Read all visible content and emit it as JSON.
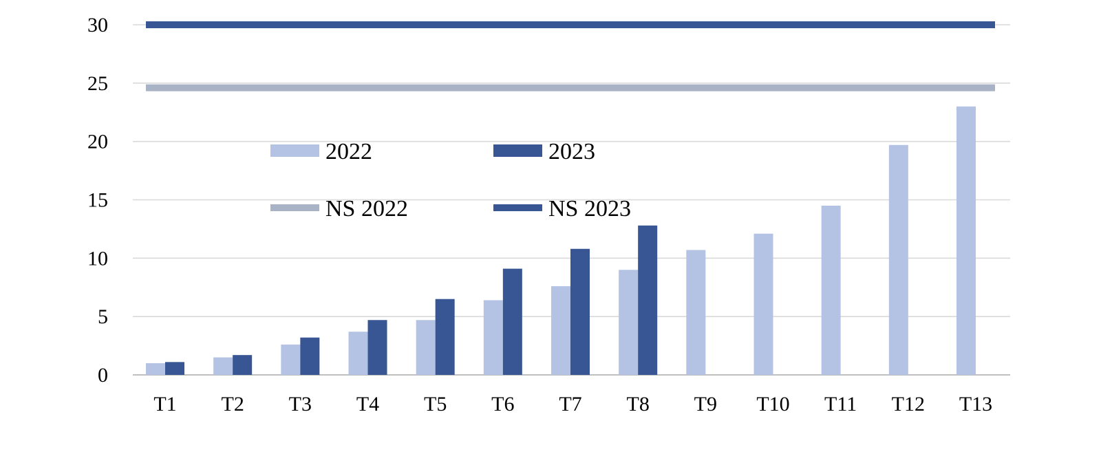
{
  "chart_data": {
    "type": "bar",
    "title": "",
    "xlabel": "",
    "ylabel": "",
    "categories": [
      "T1",
      "T2",
      "T3",
      "T4",
      "T5",
      "T6",
      "T7",
      "T8",
      "T9",
      "T10",
      "T11",
      "T12",
      "T13"
    ],
    "series": [
      {
        "name": "2022",
        "color": "#b4c3e4",
        "values": [
          1.0,
          1.5,
          2.6,
          3.7,
          4.7,
          6.4,
          7.6,
          9.0,
          10.7,
          12.1,
          14.5,
          19.7,
          23.0
        ]
      },
      {
        "name": "2023",
        "color": "#385694",
        "values": [
          1.1,
          1.7,
          3.2,
          4.7,
          6.5,
          9.1,
          10.8,
          12.8,
          null,
          null,
          null,
          null,
          null
        ]
      }
    ],
    "reference_lines": [
      {
        "name": "NS 2022",
        "value": 24.6,
        "color": "#a9b3c6"
      },
      {
        "name": "NS 2023",
        "value": 30.0,
        "color": "#385694"
      }
    ],
    "y_ticks": [
      0,
      5,
      10,
      15,
      20,
      25,
      30
    ],
    "ylim": [
      0,
      30
    ],
    "grid": true,
    "grid_color": "#d9d9d9",
    "legend_position": "inside, upper-left area"
  }
}
